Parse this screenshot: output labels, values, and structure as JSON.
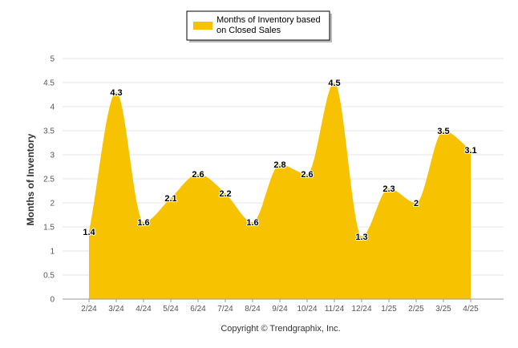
{
  "chart_data": {
    "type": "area",
    "categories": [
      "2/24",
      "3/24",
      "4/24",
      "5/24",
      "6/24",
      "7/24",
      "8/24",
      "9/24",
      "10/24",
      "11/24",
      "12/24",
      "1/25",
      "2/25",
      "3/25",
      "4/25"
    ],
    "series": [
      {
        "name": "Months of Inventory based on Closed Sales",
        "values": [
          1.4,
          4.3,
          1.6,
          2.1,
          2.6,
          2.2,
          1.6,
          2.8,
          2.6,
          4.5,
          1.3,
          2.3,
          2.0,
          3.5,
          3.1
        ],
        "labels": [
          "1.4",
          "4.3",
          "1.6",
          "2.1",
          "2.6",
          "2.2",
          "1.6",
          "2.8",
          "2.6",
          "4.5",
          "1.3",
          "2.3",
          "2",
          "3.5",
          "3.1"
        ],
        "color": "#f7c200"
      }
    ],
    "ylabel": "Months of Inventory",
    "ylim": [
      0,
      5
    ],
    "yticks": [
      "0",
      "0.5",
      "1",
      "1.5",
      "2",
      "2.5",
      "3",
      "3.5",
      "4",
      "4.5",
      "5"
    ],
    "grid": true,
    "legend_position": "top-center",
    "legend_lines": [
      "Months of Inventory based",
      "on Closed Sales"
    ]
  },
  "footer": {
    "copyright": "Copyright © Trendgraphix, Inc."
  }
}
